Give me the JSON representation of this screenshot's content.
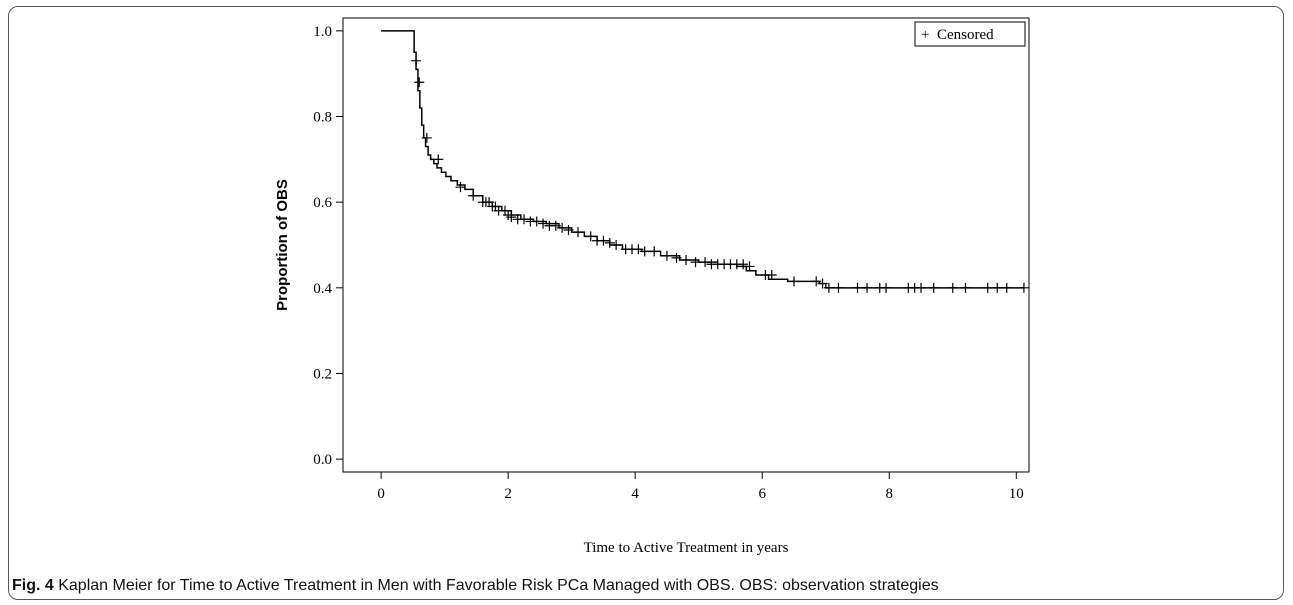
{
  "chart_data": {
    "type": "line",
    "xlabel": "Time to Active Treatment in years",
    "ylabel": "Proportion of OBS",
    "xlim": [
      -0.6,
      10.2
    ],
    "ylim": [
      -0.03,
      1.03
    ],
    "xticks": [
      0,
      2,
      4,
      6,
      8,
      10
    ],
    "yticks": [
      0.0,
      0.2,
      0.4,
      0.6,
      0.8,
      1.0
    ],
    "ytick_labels": [
      "0.0",
      "0.2",
      "0.4",
      "0.6",
      "0.8",
      "1.0"
    ],
    "legend": {
      "entry": "Censored",
      "symbol": "+",
      "placement": "top-right"
    },
    "grid": false,
    "series": [
      {
        "style": "step",
        "color": "#000000",
        "x": [
          0,
          0.52,
          0.55,
          0.58,
          0.61,
          0.64,
          0.67,
          0.7,
          0.74,
          0.78,
          0.83,
          0.88,
          0.95,
          1.02,
          1.1,
          1.2,
          1.32,
          1.45,
          1.6,
          1.75,
          1.9,
          2.05,
          2.2,
          2.4,
          2.6,
          2.8,
          3.0,
          3.2,
          3.4,
          3.6,
          3.8,
          4.1,
          4.4,
          4.7,
          5.0,
          5.3,
          5.6,
          5.75,
          5.9,
          6.1,
          6.4,
          6.9,
          7.0,
          10.12
        ],
        "y": [
          1.0,
          0.95,
          0.91,
          0.86,
          0.82,
          0.78,
          0.75,
          0.73,
          0.71,
          0.7,
          0.69,
          0.68,
          0.67,
          0.66,
          0.65,
          0.64,
          0.63,
          0.615,
          0.6,
          0.59,
          0.58,
          0.57,
          0.56,
          0.555,
          0.55,
          0.54,
          0.53,
          0.52,
          0.51,
          0.5,
          0.49,
          0.485,
          0.475,
          0.465,
          0.46,
          0.455,
          0.45,
          0.44,
          0.43,
          0.42,
          0.415,
          0.41,
          0.4,
          0.4
        ]
      }
    ],
    "censored": {
      "symbol": "+",
      "x": [
        0.55,
        0.6,
        0.72,
        0.9,
        1.25,
        1.45,
        1.6,
        1.65,
        1.7,
        1.75,
        1.8,
        1.85,
        1.95,
        2.0,
        2.05,
        2.15,
        2.25,
        2.35,
        2.45,
        2.55,
        2.65,
        2.75,
        2.85,
        2.95,
        3.1,
        3.3,
        3.4,
        3.5,
        3.6,
        3.7,
        3.85,
        3.95,
        4.05,
        4.15,
        4.3,
        4.5,
        4.65,
        4.8,
        4.95,
        5.1,
        5.2,
        5.3,
        5.4,
        5.5,
        5.6,
        5.7,
        5.8,
        6.05,
        6.15,
        6.5,
        6.85,
        6.95,
        7.05,
        7.2,
        7.5,
        7.65,
        7.85,
        7.95,
        8.3,
        8.4,
        8.5,
        8.7,
        9.0,
        9.2,
        9.55,
        9.7,
        9.85,
        10.12
      ],
      "y": [
        0.93,
        0.88,
        0.75,
        0.7,
        0.635,
        0.615,
        0.6,
        0.6,
        0.6,
        0.59,
        0.59,
        0.58,
        0.58,
        0.57,
        0.565,
        0.56,
        0.56,
        0.555,
        0.555,
        0.55,
        0.545,
        0.545,
        0.54,
        0.535,
        0.53,
        0.52,
        0.51,
        0.51,
        0.505,
        0.5,
        0.49,
        0.49,
        0.49,
        0.485,
        0.485,
        0.475,
        0.47,
        0.465,
        0.46,
        0.46,
        0.455,
        0.455,
        0.455,
        0.455,
        0.455,
        0.455,
        0.45,
        0.43,
        0.43,
        0.415,
        0.415,
        0.41,
        0.4,
        0.4,
        0.4,
        0.4,
        0.4,
        0.4,
        0.4,
        0.4,
        0.4,
        0.4,
        0.4,
        0.4,
        0.4,
        0.4,
        0.4,
        0.4
      ]
    }
  },
  "caption": {
    "label": "Fig. 4",
    "text": " Kaplan Meier for Time to Active Treatment in Men with Favorable Risk PCa Managed with OBS. OBS: observation strategies"
  }
}
